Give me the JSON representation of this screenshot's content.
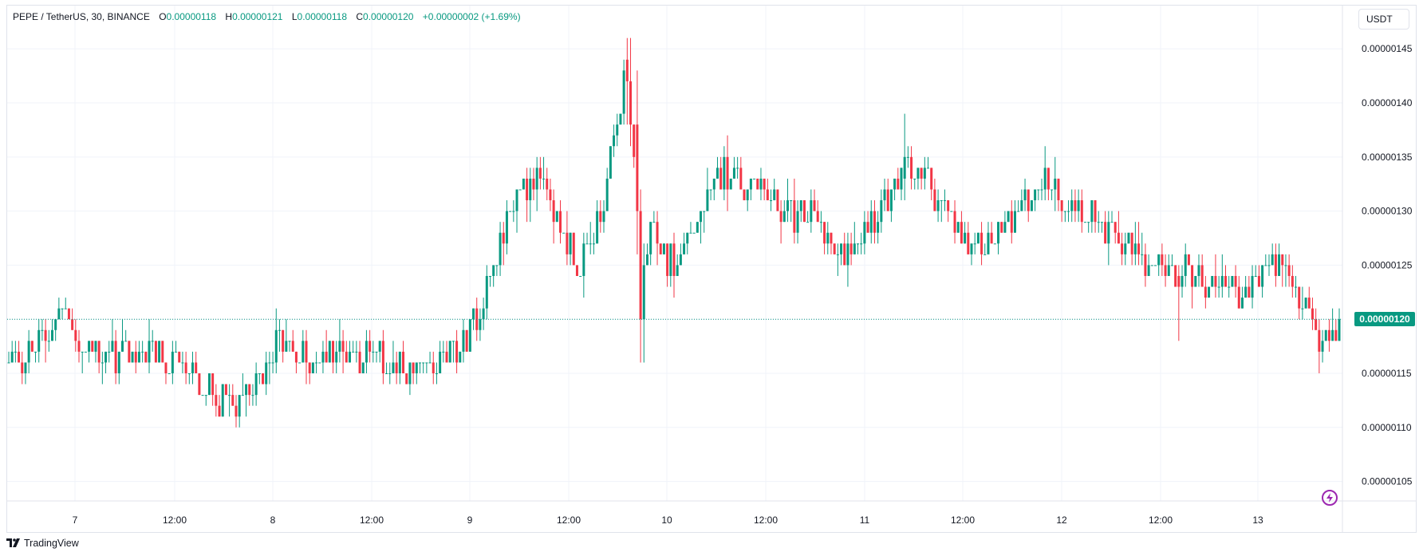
{
  "legend": {
    "symbol": "PEPE / TetherUS, 30, BINANCE",
    "o_label": "O",
    "o_value": "0.00000118",
    "h_label": "H",
    "h_value": "0.00000121",
    "l_label": "L",
    "l_value": "0.00000118",
    "c_label": "C",
    "c_value": "0.00000120",
    "change": "+0.00000002 (+1.69%)"
  },
  "currency_button": "USDT",
  "last_price_label": "0.00000120",
  "branding": "TradingView",
  "colors": {
    "up": "#089981",
    "down": "#f23645",
    "grid": "#f0f3fa",
    "last_line": "#089981",
    "accent": "#9c27b0"
  },
  "icons": {
    "bolt": "lightning-bolt-icon",
    "logo": "tradingview-logo-icon"
  },
  "chart_data": {
    "type": "candlestick",
    "interval": "30",
    "y_axis": {
      "ticks": [
        "0.00000105",
        "0.00000110",
        "0.00000115",
        "0.00000120",
        "0.00000125",
        "0.00000130",
        "0.00000135",
        "0.00000140",
        "0.00000145"
      ],
      "ylim": [
        1.032e-06,
        1.49e-06
      ]
    },
    "x_axis": {
      "ticks": [
        "7",
        "12:00",
        "8",
        "12:00",
        "9",
        "12:00",
        "10",
        "12:00",
        "11",
        "12:00",
        "12",
        "12:00",
        "13"
      ]
    },
    "last_price": 1.2e-06,
    "grid": true,
    "anchors": [
      [
        0,
        1.16
      ],
      [
        8,
        1.17
      ],
      [
        12,
        1.19
      ],
      [
        16,
        1.21
      ],
      [
        20,
        1.18
      ],
      [
        30,
        1.165
      ],
      [
        40,
        1.17
      ],
      [
        48,
        1.16
      ],
      [
        56,
        1.145
      ],
      [
        62,
        1.13
      ],
      [
        66,
        1.12
      ],
      [
        68,
        1.11
      ],
      [
        72,
        1.13
      ],
      [
        76,
        1.15
      ],
      [
        80,
        1.18
      ],
      [
        84,
        1.17
      ],
      [
        90,
        1.16
      ],
      [
        96,
        1.17
      ],
      [
        104,
        1.17
      ],
      [
        112,
        1.16
      ],
      [
        118,
        1.15
      ],
      [
        124,
        1.15
      ],
      [
        130,
        1.16
      ],
      [
        136,
        1.18
      ],
      [
        140,
        1.2
      ],
      [
        142,
        1.22
      ],
      [
        144,
        1.24
      ],
      [
        148,
        1.28
      ],
      [
        152,
        1.32
      ],
      [
        158,
        1.33
      ],
      [
        162,
        1.3
      ],
      [
        166,
        1.28
      ],
      [
        170,
        1.25
      ],
      [
        174,
        1.27
      ],
      [
        178,
        1.31
      ],
      [
        182,
        1.38
      ],
      [
        184,
        1.42
      ],
      [
        186,
        1.38
      ],
      [
        188,
        1.32
      ],
      [
        190,
        1.25
      ],
      [
        192,
        1.28
      ],
      [
        196,
        1.26
      ],
      [
        200,
        1.25
      ],
      [
        204,
        1.28
      ],
      [
        208,
        1.3
      ],
      [
        212,
        1.33
      ],
      [
        216,
        1.34
      ],
      [
        220,
        1.32
      ],
      [
        224,
        1.33
      ],
      [
        228,
        1.31
      ],
      [
        232,
        1.3
      ],
      [
        236,
        1.29
      ],
      [
        240,
        1.3
      ],
      [
        244,
        1.28
      ],
      [
        248,
        1.25
      ],
      [
        252,
        1.27
      ],
      [
        256,
        1.29
      ],
      [
        260,
        1.3
      ],
      [
        264,
        1.31
      ],
      [
        268,
        1.33
      ],
      [
        272,
        1.34
      ],
      [
        276,
        1.32
      ],
      [
        280,
        1.3
      ],
      [
        284,
        1.28
      ],
      [
        288,
        1.26
      ],
      [
        292,
        1.27
      ],
      [
        296,
        1.28
      ],
      [
        300,
        1.29
      ],
      [
        304,
        1.31
      ],
      [
        308,
        1.33
      ],
      [
        312,
        1.33
      ],
      [
        316,
        1.31
      ],
      [
        320,
        1.3
      ],
      [
        324,
        1.3
      ],
      [
        328,
        1.28
      ],
      [
        332,
        1.27
      ],
      [
        336,
        1.26
      ],
      [
        340,
        1.25
      ],
      [
        344,
        1.25
      ],
      [
        348,
        1.24
      ],
      [
        352,
        1.25
      ],
      [
        356,
        1.24
      ],
      [
        360,
        1.23
      ],
      [
        364,
        1.24
      ],
      [
        368,
        1.22
      ],
      [
        372,
        1.23
      ],
      [
        376,
        1.25
      ],
      [
        380,
        1.25
      ],
      [
        384,
        1.23
      ],
      [
        388,
        1.21
      ],
      [
        392,
        1.18
      ],
      [
        396,
        1.18
      ],
      [
        398,
        1.2
      ]
    ],
    "overrides": [
      [
        185,
        1.44,
        1.46,
        1.38,
        1.42
      ],
      [
        186,
        1.42,
        1.46,
        1.36,
        1.38
      ],
      [
        188,
        1.38,
        1.43,
        1.26,
        1.3
      ],
      [
        189,
        1.3,
        1.32,
        1.16,
        1.2
      ],
      [
        190,
        1.2,
        1.27,
        1.16,
        1.25
      ],
      [
        268,
        1.33,
        1.39,
        1.31,
        1.35
      ],
      [
        350,
        1.24,
        1.25,
        1.18,
        1.23
      ],
      [
        392,
        1.19,
        1.2,
        1.15,
        1.17
      ],
      [
        398,
        1.18,
        1.21,
        1.18,
        1.2
      ]
    ]
  }
}
